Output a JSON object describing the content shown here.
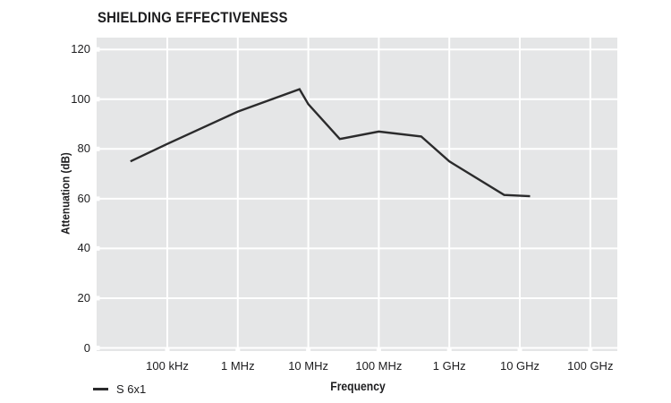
{
  "page": {
    "background": "#ffffff"
  },
  "chart_data": {
    "type": "line",
    "title": "SHIELDING EFFECTIVENESS",
    "xlabel": "Frequency",
    "ylabel": "Attenuation (dB)",
    "x_scale": "log",
    "grid": true,
    "legend_position": "bottom-left",
    "plot_background": "#e5e6e7",
    "gridline_color": "#ffffff",
    "text_color": "#1c1c1e",
    "ylim": [
      0,
      120
    ],
    "y_ticks": [
      0,
      20,
      40,
      60,
      80,
      100,
      120
    ],
    "x_ticks": [
      {
        "label": "100 kHz",
        "hz": 100000
      },
      {
        "label": "1 MHz",
        "hz": 1000000
      },
      {
        "label": "10 MHz",
        "hz": 10000000
      },
      {
        "label": "100 MHz",
        "hz": 100000000
      },
      {
        "label": "1 GHz",
        "hz": 1000000000
      },
      {
        "label": "10 GHz",
        "hz": 10000000000
      },
      {
        "label": "100 GHz",
        "hz": 100000000000
      }
    ],
    "series": [
      {
        "name": "S 6x1",
        "color": "#2b2b2c",
        "points": [
          {
            "freq_hz": 30000,
            "attenuation_db": 75
          },
          {
            "freq_hz": 100000,
            "attenuation_db": 82
          },
          {
            "freq_hz": 1000000,
            "attenuation_db": 95
          },
          {
            "freq_hz": 7500000,
            "attenuation_db": 104
          },
          {
            "freq_hz": 10000000,
            "attenuation_db": 98
          },
          {
            "freq_hz": 28000000,
            "attenuation_db": 84
          },
          {
            "freq_hz": 100000000,
            "attenuation_db": 87
          },
          {
            "freq_hz": 400000000,
            "attenuation_db": 85
          },
          {
            "freq_hz": 1000000000,
            "attenuation_db": 75
          },
          {
            "freq_hz": 6000000000,
            "attenuation_db": 61.5
          },
          {
            "freq_hz": 14000000000,
            "attenuation_db": 61
          }
        ]
      }
    ]
  }
}
